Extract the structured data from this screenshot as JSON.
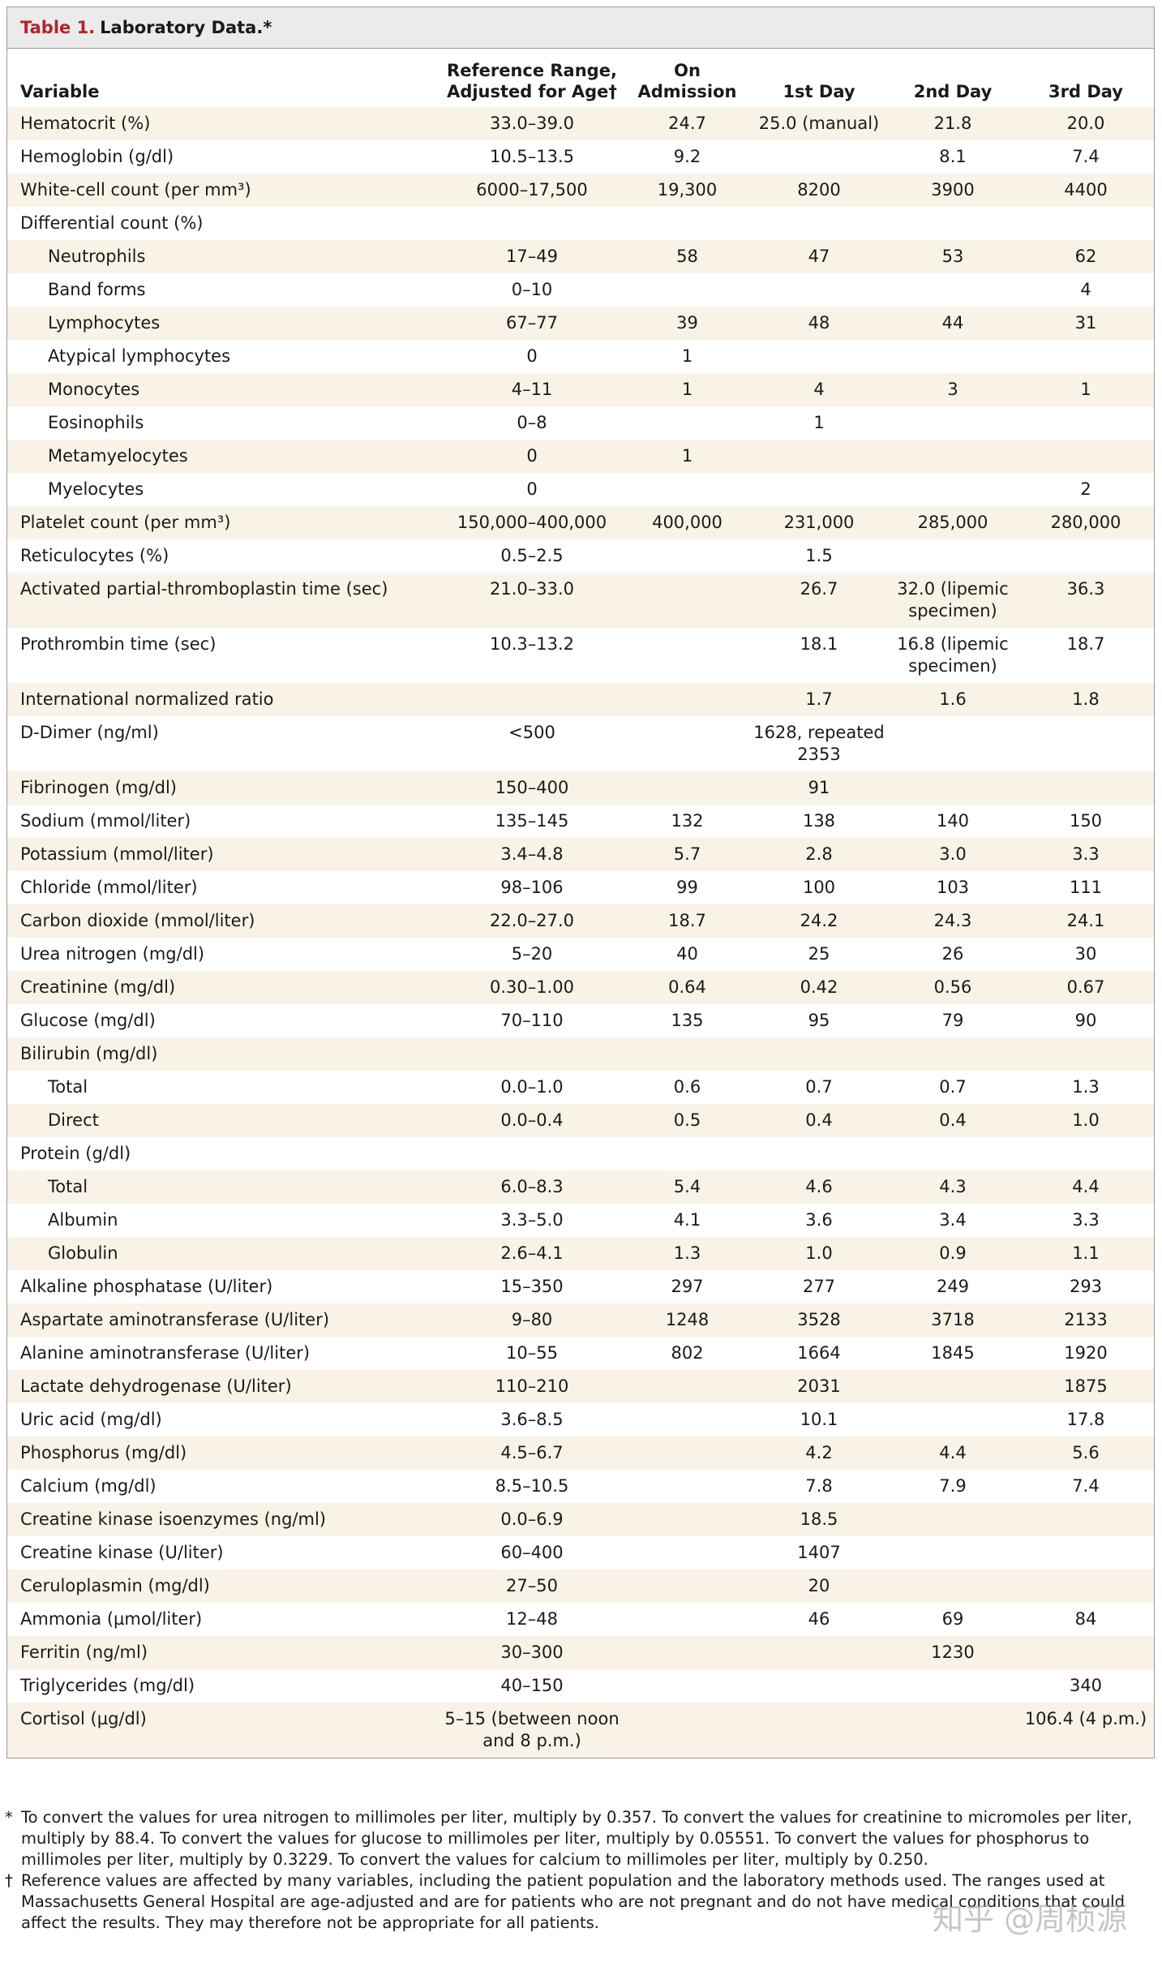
{
  "header": {
    "number": "Table 1.",
    "title": "Laboratory Data.*"
  },
  "table": {
    "columns": [
      "Variable",
      "Reference Range, Adjusted for Age†",
      "On Admission",
      "1st Day",
      "2nd Day",
      "3rd Day"
    ],
    "rows": [
      [
        "Hematocrit (%)",
        "33.0–39.0",
        "24.7",
        "25.0 (manual)",
        "21.8",
        "20.0"
      ],
      [
        "Hemoglobin (g/dl)",
        "10.5–13.5",
        "9.2",
        null,
        "8.1",
        "7.4"
      ],
      [
        "White-cell count (per mm³)",
        "6000–17,500",
        "19,300",
        "8200",
        "3900",
        "4400"
      ],
      {
        "group": "Differential count (%)",
        "rows": [
          [
            "Neutrophils",
            "17–49",
            "58",
            "47",
            "53",
            "62"
          ],
          [
            "Band forms",
            "0–10",
            null,
            null,
            null,
            "4"
          ],
          [
            "Lymphocytes",
            "67–77",
            "39",
            "48",
            "44",
            "31"
          ],
          [
            "Atypical lymphocytes",
            "0",
            "1",
            null,
            null,
            null
          ],
          [
            "Monocytes",
            "4–11",
            "1",
            "4",
            "3",
            "1"
          ],
          [
            "Eosinophils",
            "0–8",
            null,
            "1",
            null,
            null
          ],
          [
            "Metamyelocytes",
            "0",
            "1",
            null,
            null,
            null
          ],
          [
            "Myelocytes",
            "0",
            null,
            null,
            null,
            "2"
          ]
        ]
      },
      [
        "Platelet count (per mm³)",
        "150,000–400,000",
        "400,000",
        "231,000",
        "285,000",
        "280,000"
      ],
      [
        "Reticulocytes (%)",
        "0.5–2.5",
        null,
        "1.5",
        null,
        null
      ],
      [
        "Activated partial-thromboplastin time (sec)",
        "21.0–33.0",
        null,
        "26.7",
        "32.0 (lipemic specimen)",
        "36.3"
      ],
      [
        "Prothrombin time (sec)",
        "10.3–13.2",
        null,
        "18.1",
        "16.8 (lipemic specimen)",
        "18.7"
      ],
      [
        "International normalized ratio",
        null,
        null,
        "1.7",
        "1.6",
        "1.8"
      ],
      [
        "D-Dimer (ng/ml)",
        "<500",
        null,
        "1628, repeated 2353",
        null,
        null
      ],
      [
        "Fibrinogen (mg/dl)",
        "150–400",
        null,
        "91",
        null,
        null
      ],
      [
        "Sodium (mmol/liter)",
        "135–145",
        "132",
        "138",
        "140",
        "150"
      ],
      [
        "Potassium (mmol/liter)",
        "3.4–4.8",
        "5.7",
        "2.8",
        "3.0",
        "3.3"
      ],
      [
        "Chloride (mmol/liter)",
        "98–106",
        "99",
        "100",
        "103",
        "111"
      ],
      [
        "Carbon dioxide (mmol/liter)",
        "22.0–27.0",
        "18.7",
        "24.2",
        "24.3",
        "24.1"
      ],
      [
        "Urea nitrogen (mg/dl)",
        "5–20",
        "40",
        "25",
        "26",
        "30"
      ],
      [
        "Creatinine (mg/dl)",
        "0.30–1.00",
        "0.64",
        "0.42",
        "0.56",
        "0.67"
      ],
      [
        "Glucose (mg/dl)",
        "70–110",
        "135",
        "95",
        "79",
        "90"
      ],
      {
        "group": "Bilirubin (mg/dl)",
        "rows": [
          [
            "Total",
            "0.0–1.0",
            "0.6",
            "0.7",
            "0.7",
            "1.3"
          ],
          [
            "Direct",
            "0.0–0.4",
            "0.5",
            "0.4",
            "0.4",
            "1.0"
          ]
        ]
      },
      {
        "group": "Protein (g/dl)",
        "rows": [
          [
            "Total",
            "6.0–8.3",
            "5.4",
            "4.6",
            "4.3",
            "4.4"
          ],
          [
            "Albumin",
            "3.3–5.0",
            "4.1",
            "3.6",
            "3.4",
            "3.3"
          ],
          [
            "Globulin",
            "2.6–4.1",
            "1.3",
            "1.0",
            "0.9",
            "1.1"
          ]
        ]
      },
      [
        "Alkaline phosphatase (U/liter)",
        "15–350",
        "297",
        "277",
        "249",
        "293"
      ],
      [
        "Aspartate aminotransferase (U/liter)",
        "9–80",
        "1248",
        "3528",
        "3718",
        "2133"
      ],
      [
        "Alanine aminotransferase (U/liter)",
        "10–55",
        "802",
        "1664",
        "1845",
        "1920"
      ],
      [
        "Lactate dehydrogenase (U/liter)",
        "110–210",
        null,
        "2031",
        null,
        "1875"
      ],
      [
        "Uric acid (mg/dl)",
        "3.6–8.5",
        null,
        "10.1",
        null,
        "17.8"
      ],
      [
        "Phosphorus (mg/dl)",
        "4.5–6.7",
        null,
        "4.2",
        "4.4",
        "5.6"
      ],
      [
        "Calcium (mg/dl)",
        "8.5–10.5",
        null,
        "7.8",
        "7.9",
        "7.4"
      ],
      [
        "Creatine kinase isoenzymes (ng/ml)",
        "0.0–6.9",
        null,
        "18.5",
        null,
        null
      ],
      [
        "Creatine kinase (U/liter)",
        "60–400",
        null,
        "1407",
        null,
        null
      ],
      [
        "Ceruloplasmin (mg/dl)",
        "27–50",
        null,
        "20",
        null,
        null
      ],
      [
        "Ammonia (µmol/liter)",
        "12–48",
        null,
        "46",
        "69",
        "84"
      ],
      [
        "Ferritin (ng/ml)",
        "30–300",
        null,
        null,
        "1230",
        null
      ],
      [
        "Triglycerides (mg/dl)",
        "40–150",
        null,
        null,
        null,
        "340"
      ],
      [
        "Cortisol (µg/dl)",
        "5–15 (between noon and 8 p.m.)",
        null,
        null,
        null,
        "106.4 (4 p.m.)"
      ]
    ]
  },
  "footnotes": [
    {
      "mark": "*",
      "text": "To convert the values for urea nitrogen to millimoles per liter, multiply by 0.357. To convert the values for creatinine to micromoles per liter, multiply by 88.4. To convert the values for glucose to millimoles per liter, multiply by 0.05551. To convert the values for phosphorus to millimoles per liter, multiply by 0.3229. To convert the values for calcium to millimoles per liter, multiply by 0.250."
    },
    {
      "mark": "†",
      "text": "Reference values are affected by many variables, including the patient population and the laboratory methods used. The ranges used at Massachusetts General Hospital are age-adjusted and are for patients who are not pregnant and do not have medical conditions that could affect the results. They may therefore not be appropriate for all patients."
    }
  ],
  "watermark": "知乎 @周桢源"
}
